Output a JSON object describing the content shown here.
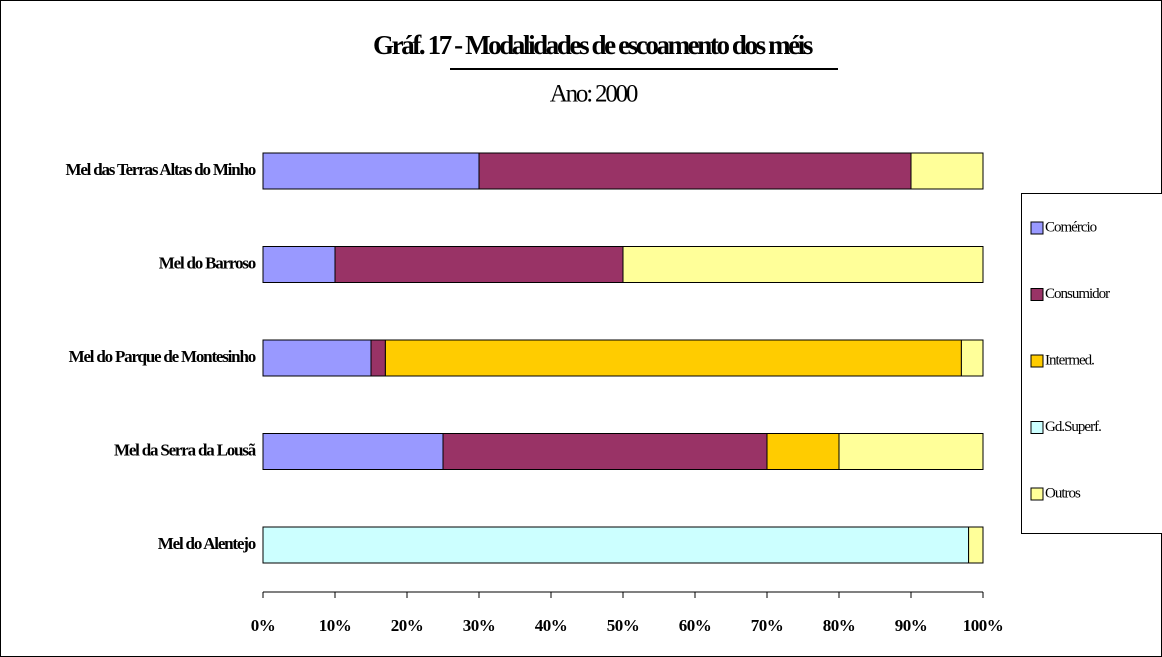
{
  "chart_data": {
    "type": "stacked_barh",
    "title": "Gráf. 17 - Modalidades de escoamento dos méis",
    "subtitle": "Ano: 2000",
    "categories": [
      "Mel das Terras Altas do Minho",
      "Mel do Barroso",
      "Mel do Parque de Montesinho",
      "Mel da Serra da Lousã",
      "Mel do Alentejo"
    ],
    "series": [
      {
        "name": "Comércio",
        "color": "#9999ff",
        "values": [
          30,
          10,
          15,
          25,
          0
        ]
      },
      {
        "name": "Consumidor",
        "color": "#993366",
        "values": [
          60,
          40,
          2,
          45,
          0
        ]
      },
      {
        "name": "Intermed.",
        "color": "#ffcc00",
        "values": [
          0,
          0,
          80,
          10,
          0
        ]
      },
      {
        "name": "Gd.Superf.",
        "color": "#ccffff",
        "values": [
          0,
          0,
          0,
          0,
          98
        ]
      },
      {
        "name": "Outros",
        "color": "#ffff99",
        "values": [
          10,
          50,
          3,
          20,
          2
        ]
      }
    ],
    "xlim": [
      0,
      100
    ],
    "xticks": [
      {
        "value": 0,
        "label": "0%"
      },
      {
        "value": 10,
        "label": "10%"
      },
      {
        "value": 20,
        "label": "20%"
      },
      {
        "value": 30,
        "label": "30%"
      },
      {
        "value": 40,
        "label": "40%"
      },
      {
        "value": 50,
        "label": "50%"
      },
      {
        "value": 60,
        "label": "60%"
      },
      {
        "value": 70,
        "label": "70%"
      },
      {
        "value": 80,
        "label": "80%"
      },
      {
        "value": 90,
        "label": "90%"
      },
      {
        "value": 100,
        "label": "100%"
      }
    ],
    "legend": "right"
  }
}
